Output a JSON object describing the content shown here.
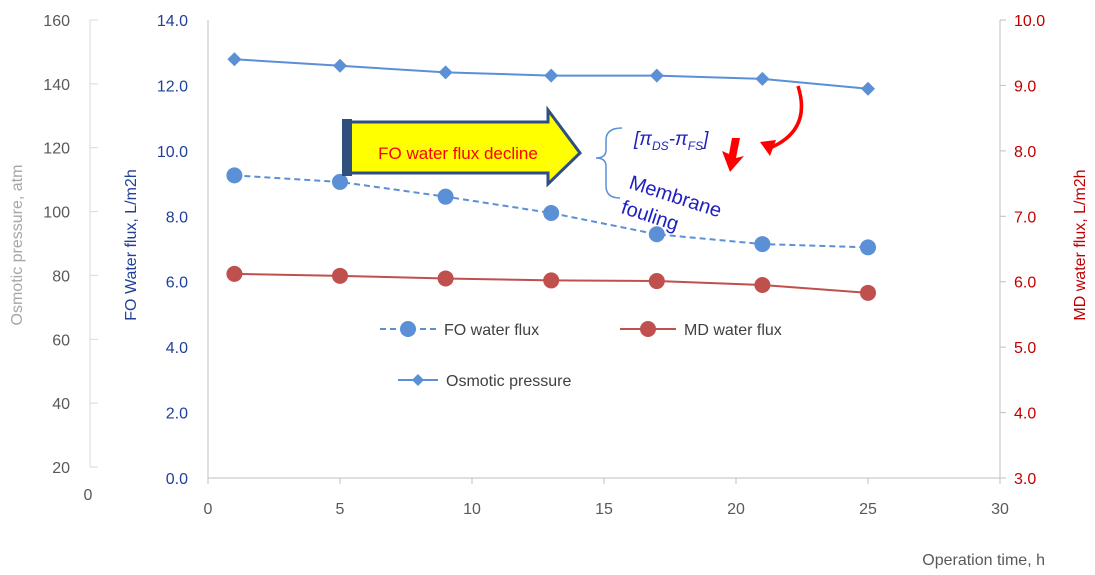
{
  "chart_data": {
    "type": "line",
    "x": [
      1,
      5,
      9,
      13,
      17,
      21,
      25
    ],
    "xlabel": "Operation time, h",
    "xlim": [
      0,
      30
    ],
    "xticks": [
      "0",
      "5",
      "10",
      "15",
      "20",
      "25",
      "30"
    ],
    "axes": {
      "osmotic": {
        "label": "Osmotic pressure, atm",
        "range": [
          20,
          160
        ],
        "ticks": [
          "20",
          "40",
          "60",
          "80",
          "100",
          "120",
          "140",
          "160"
        ],
        "origin_label": "0",
        "color": "#a6a6a6"
      },
      "fo": {
        "label": "FO Water flux, L/m2h",
        "range": [
          0,
          14
        ],
        "ticks": [
          "0.0",
          "2.0",
          "4.0",
          "6.0",
          "8.0",
          "10.0",
          "12.0",
          "14.0"
        ],
        "color": "#1f3f99"
      },
      "md": {
        "label": "MD water flux, L/m2h",
        "range": [
          3,
          10
        ],
        "ticks": [
          "3.0",
          "4.0",
          "5.0",
          "6.0",
          "7.0",
          "8.0",
          "9.0",
          "10.0"
        ],
        "color": "#c00000"
      }
    },
    "series": [
      {
        "name": "FO water flux",
        "axis": "fo",
        "values": [
          9.25,
          9.05,
          8.6,
          8.1,
          7.45,
          7.15,
          7.05
        ],
        "color": "#5b8fd6",
        "dashed": true,
        "marker": "circle"
      },
      {
        "name": "MD water flux",
        "axis": "md",
        "values": [
          6.12,
          6.09,
          6.05,
          6.02,
          6.01,
          5.95,
          5.83
        ],
        "color": "#c0504d",
        "dashed": false,
        "marker": "circle"
      },
      {
        "name": "Osmotic pressure",
        "axis": "fo",
        "values": [
          12.8,
          12.6,
          12.4,
          12.3,
          12.3,
          12.2,
          11.9
        ],
        "color": "#5b8fd6",
        "dashed": false,
        "marker": "diamond"
      }
    ],
    "legend": {
      "placement": "center"
    },
    "grid": false
  },
  "annotations": {
    "arrow_label": "FO water flux decline",
    "pi_prefix": "[π",
    "pi_sub1": "DS",
    "pi_mid": "-π",
    "pi_sub2": "FS",
    "pi_suffix": "]",
    "membrane_line1": "Membrane",
    "membrane_line2": "fouling",
    "arrow_colors": {
      "fill": "#ffff00",
      "stroke": "#2f4f7f",
      "text": "#ff0000",
      "red_arrow": "#ff0000",
      "brace": "#5b8fd6",
      "note_text": "#2020c0"
    }
  }
}
